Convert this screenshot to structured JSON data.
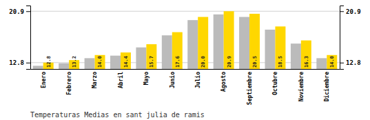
{
  "chart_data": {
    "type": "bar",
    "title": "Temperaturas Medias en sant julia de ramis",
    "categories": [
      "Enero",
      "Febrero",
      "Marzo",
      "Abril",
      "Mayo",
      "Junio",
      "Julio",
      "Agosto",
      "Septiembre",
      "Octubre",
      "Noviembre",
      "Diciembre"
    ],
    "series": [
      {
        "color": "#BBBBBB",
        "values": [
          12.3,
          12.7,
          13.5,
          13.9,
          15.2,
          17.1,
          19.5,
          20.4,
          20.0,
          18.0,
          15.8,
          13.5
        ]
      },
      {
        "color": "#FFD700",
        "values": [
          12.8,
          13.2,
          14.0,
          14.4,
          15.7,
          17.6,
          20.0,
          20.9,
          20.5,
          18.5,
          16.3,
          14.0
        ],
        "value_labels": [
          "12.8",
          "13.2",
          "14.0",
          "14.4",
          "15.7",
          "17.6",
          "20.0",
          "20.9",
          "20.5",
          "18.5",
          "16.3",
          "14.0"
        ],
        "data_labels": true
      }
    ],
    "ylim": [
      11.8,
      21.8
    ],
    "yticks": [
      12.8,
      20.9
    ],
    "grid": true
  }
}
